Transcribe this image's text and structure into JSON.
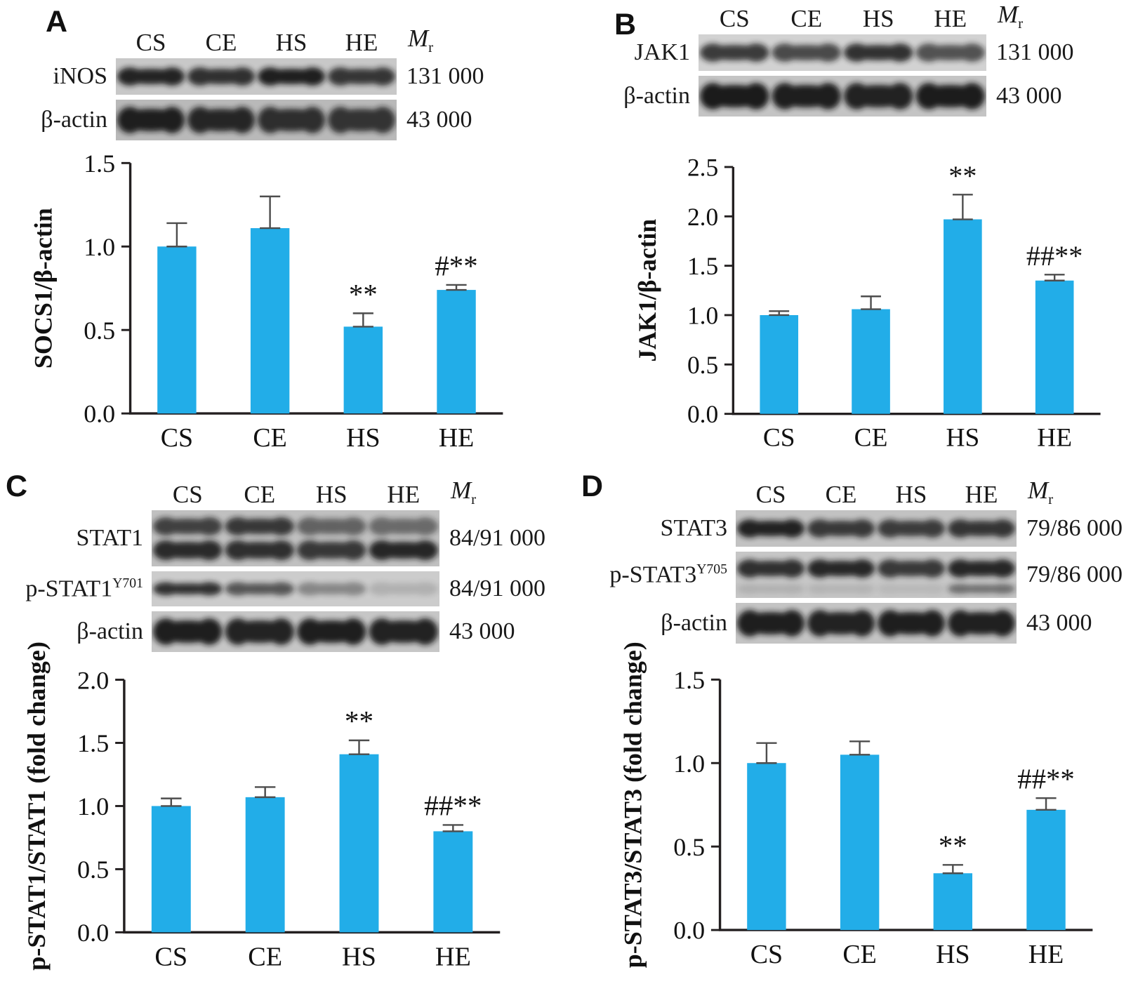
{
  "accent_color": "#22ade8",
  "axis_color": "#231f20",
  "error_color": "#4d4d4d",
  "band_color": "#141414",
  "lanes": [
    "CS",
    "CE",
    "HS",
    "HE"
  ],
  "mr": {
    "main": "M",
    "sub": "r"
  },
  "panels": [
    {
      "label": "A",
      "blot_rows": [
        {
          "label": "iNOS",
          "sup": "",
          "mr": "131 000",
          "shape": "single",
          "bg": "#c8c8c8",
          "intensities": [
            0.92,
            0.85,
            0.95,
            0.82
          ]
        },
        {
          "label": "β-actin",
          "sup": "",
          "mr": "43 000",
          "shape": "actin",
          "bg": "#b9b9b9",
          "intensities": [
            0.95,
            0.9,
            0.85,
            0.82
          ]
        }
      ]
    },
    {
      "label": "B",
      "blot_rows": [
        {
          "label": "JAK1",
          "sup": "",
          "mr": "131 000",
          "shape": "single",
          "bg": "#d2d2d2",
          "intensities": [
            0.8,
            0.72,
            0.85,
            0.68
          ]
        },
        {
          "label": "β-actin",
          "sup": "",
          "mr": "43 000",
          "shape": "actin",
          "bg": "#c4c4c4",
          "intensities": [
            0.97,
            0.95,
            0.93,
            0.96
          ]
        }
      ]
    },
    {
      "label": "C",
      "blot_rows": [
        {
          "label": "STAT1",
          "sup": "",
          "mr": "84/91 000",
          "shape": "double",
          "bg": "#c0c0c0",
          "intensities": [
            0.75,
            0.8,
            0.55,
            0.5
          ],
          "intensities2": [
            0.88,
            0.85,
            0.8,
            0.9
          ]
        },
        {
          "label": "p-STAT1",
          "sup": "Y701",
          "mr": "84/91 000",
          "shape": "faint",
          "bg": "#cccccc",
          "intensities": [
            0.85,
            0.65,
            0.38,
            0.15
          ]
        },
        {
          "label": "β-actin",
          "sup": "",
          "mr": "43 000",
          "shape": "actin",
          "bg": "#c6c6c6",
          "intensities": [
            0.95,
            0.92,
            0.95,
            0.93
          ]
        }
      ]
    },
    {
      "label": "D",
      "blot_rows": [
        {
          "label": "STAT3",
          "sup": "",
          "mr": "79/86 000",
          "shape": "single",
          "bg": "#c2c2c2",
          "intensities": [
            0.93,
            0.8,
            0.78,
            0.82
          ]
        },
        {
          "label": "p-STAT3",
          "sup": "Y705",
          "mr": "79/86 000",
          "shape": "double-faint",
          "bg": "#c6c6c6",
          "intensities": [
            0.85,
            0.9,
            0.8,
            0.9
          ],
          "intensities2": [
            0.12,
            0.1,
            0.08,
            0.5
          ]
        },
        {
          "label": "β-actin",
          "sup": "",
          "mr": "43 000",
          "shape": "actin",
          "bg": "#c4c4c4",
          "intensities": [
            0.95,
            0.93,
            0.95,
            0.94
          ]
        }
      ]
    }
  ],
  "chart_data": [
    {
      "type": "bar",
      "categories": [
        "CS",
        "CE",
        "HS",
        "HE"
      ],
      "values": [
        1.0,
        1.11,
        0.52,
        0.74
      ],
      "errors": [
        0.14,
        0.19,
        0.08,
        0.03
      ],
      "annotations": [
        "",
        "",
        "**",
        "#**"
      ],
      "title": "",
      "xlabel": "",
      "ylabel": "SOCS1/β-actin",
      "ylim": [
        0,
        1.5
      ],
      "yticks": [
        "0.0",
        "0.5",
        "1.0",
        "1.5"
      ],
      "grid": false,
      "legend": false
    },
    {
      "type": "bar",
      "categories": [
        "CS",
        "CE",
        "HS",
        "HE"
      ],
      "values": [
        1.0,
        1.06,
        1.97,
        1.35
      ],
      "errors": [
        0.04,
        0.13,
        0.25,
        0.06
      ],
      "annotations": [
        "",
        "",
        "**",
        "##**"
      ],
      "title": "",
      "xlabel": "",
      "ylabel": "JAK1/β-actin",
      "ylim": [
        0,
        2.5
      ],
      "yticks": [
        "0.0",
        "0.5",
        "1.0",
        "1.5",
        "2.0",
        "2.5"
      ],
      "grid": false,
      "legend": false
    },
    {
      "type": "bar",
      "categories": [
        "CS",
        "CE",
        "HS",
        "HE"
      ],
      "values": [
        1.0,
        1.07,
        1.41,
        0.8
      ],
      "errors": [
        0.06,
        0.08,
        0.11,
        0.05
      ],
      "annotations": [
        "",
        "",
        "**",
        "##**"
      ],
      "title": "",
      "xlabel": "",
      "ylabel": "p-STAT1/STAT1 (fold change)",
      "ylim": [
        0,
        2.0
      ],
      "yticks": [
        "0.0",
        "0.5",
        "1.0",
        "1.5",
        "2.0"
      ],
      "grid": false,
      "legend": false
    },
    {
      "type": "bar",
      "categories": [
        "CS",
        "CE",
        "HS",
        "HE"
      ],
      "values": [
        1.0,
        1.05,
        0.34,
        0.72
      ],
      "errors": [
        0.12,
        0.08,
        0.05,
        0.07
      ],
      "annotations": [
        "",
        "",
        "**",
        "##**"
      ],
      "title": "",
      "xlabel": "",
      "ylabel": "p-STAT3/STAT3 (fold change)",
      "ylim": [
        0,
        1.5
      ],
      "yticks": [
        "0.0",
        "0.5",
        "1.0",
        "1.5"
      ],
      "grid": false,
      "legend": false
    }
  ]
}
